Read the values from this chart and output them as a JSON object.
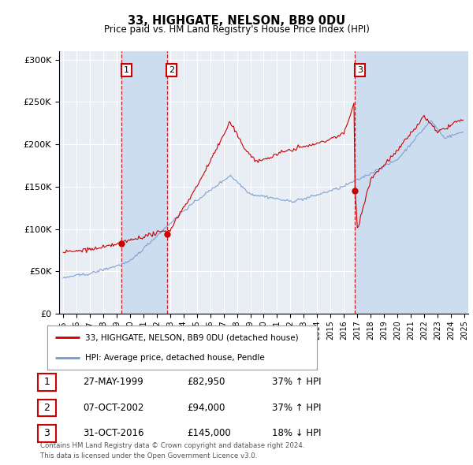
{
  "title": "33, HIGHGATE, NELSON, BB9 0DU",
  "subtitle": "Price paid vs. HM Land Registry's House Price Index (HPI)",
  "background_color": "#ffffff",
  "plot_bg_color": "#e8eef4",
  "grid_color": "#ffffff",
  "red_line_color": "#cc0000",
  "blue_line_color": "#7799cc",
  "shade_color": "#ccddf0",
  "purchases": [
    {
      "date_num": 1999.38,
      "price": 82950,
      "label": "1"
    },
    {
      "date_num": 2002.75,
      "price": 94000,
      "label": "2"
    },
    {
      "date_num": 2016.83,
      "price": 145000,
      "label": "3"
    }
  ],
  "legend_entries": [
    "33, HIGHGATE, NELSON, BB9 0DU (detached house)",
    "HPI: Average price, detached house, Pendle"
  ],
  "table_rows": [
    {
      "num": "1",
      "date": "27-MAY-1999",
      "price": "£82,950",
      "change": "37% ↑ HPI"
    },
    {
      "num": "2",
      "date": "07-OCT-2002",
      "price": "£94,000",
      "change": "37% ↑ HPI"
    },
    {
      "num": "3",
      "date": "31-OCT-2016",
      "price": "£145,000",
      "change": "18% ↓ HPI"
    }
  ],
  "footer": "Contains HM Land Registry data © Crown copyright and database right 2024.\nThis data is licensed under the Open Government Licence v3.0.",
  "ylim": [
    0,
    310000
  ],
  "xlim_start": 1994.7,
  "xlim_end": 2025.3
}
